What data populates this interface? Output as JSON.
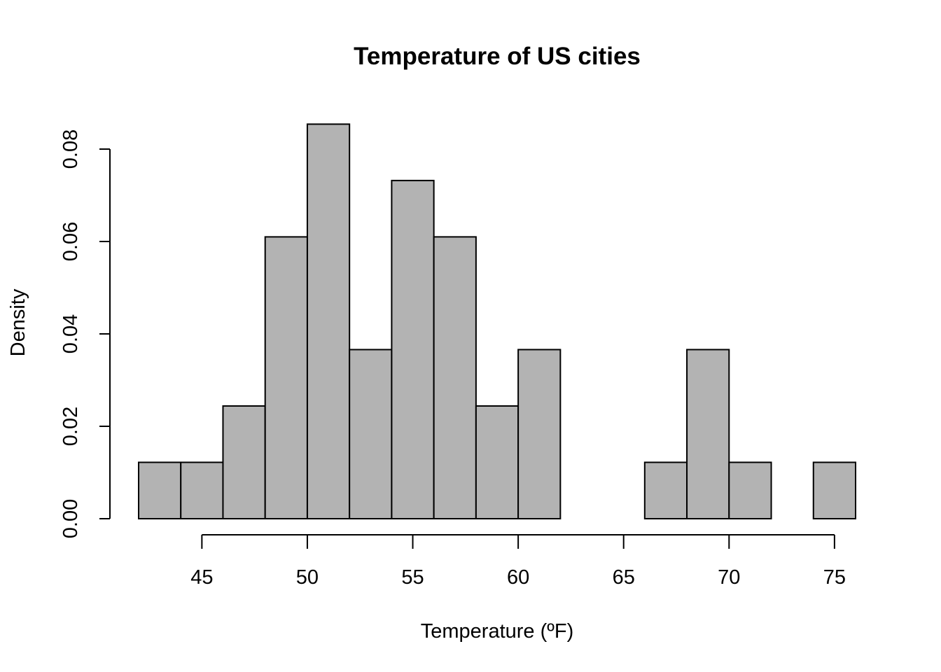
{
  "chart_data": {
    "type": "bar",
    "title": "Temperature of US cities",
    "xlabel": "Temperature (ºF)",
    "ylabel": "Density",
    "bar_color": "#b3b3b3",
    "bin_edges": [
      42,
      44,
      46,
      48,
      50,
      52,
      54,
      56,
      58,
      60,
      62,
      64,
      66,
      68,
      70,
      72,
      74,
      76
    ],
    "values": [
      0.0122,
      0.0122,
      0.0244,
      0.061,
      0.0854,
      0.0366,
      0.0732,
      0.061,
      0.0244,
      0.0366,
      0,
      0,
      0.0122,
      0.0366,
      0.0122,
      0,
      0.0122
    ],
    "xlim": [
      42,
      76
    ],
    "ylim": [
      0,
      0.085
    ],
    "x_ticks": [
      45,
      50,
      55,
      60,
      65,
      70,
      75
    ],
    "x_tick_labels": [
      "45",
      "50",
      "55",
      "60",
      "65",
      "70",
      "75"
    ],
    "y_ticks": [
      0,
      0.02,
      0.04,
      0.06,
      0.08
    ],
    "y_tick_labels": [
      "0.00",
      "0.02",
      "0.04",
      "0.06",
      "0.08"
    ],
    "grid": false,
    "legend": "none"
  }
}
